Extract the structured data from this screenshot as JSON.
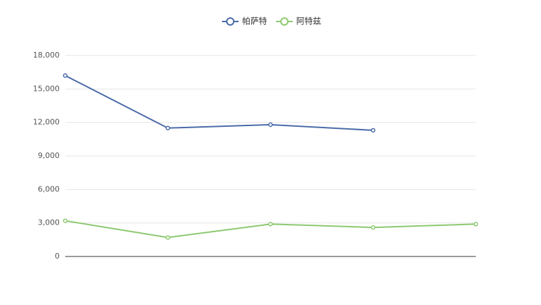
{
  "chart_data": {
    "type": "line",
    "categories": [
      null,
      null,
      null,
      null,
      null
    ],
    "series": [
      {
        "name": "帕萨特",
        "color": "#4a6aa8",
        "values": [
          16200,
          11500,
          11800,
          11300,
          null
        ]
      },
      {
        "name": "阿特兹",
        "color": "#8cc870",
        "values": [
          3200,
          1700,
          2900,
          2600,
          2900
        ]
      }
    ],
    "ylim": [
      0,
      18000
    ],
    "yticks": [
      0,
      {
        "value": 3000,
        "label": "3,000"
      },
      {
        "value": 6000,
        "label": "6,000"
      },
      {
        "value": 9000,
        "label": "9,000"
      },
      {
        "value": 12000,
        "label": "12,000"
      },
      {
        "value": 15000,
        "label": "15,000"
      },
      {
        "value": 18000,
        "label": "18,000"
      }
    ],
    "grid": true,
    "legend": "top"
  }
}
